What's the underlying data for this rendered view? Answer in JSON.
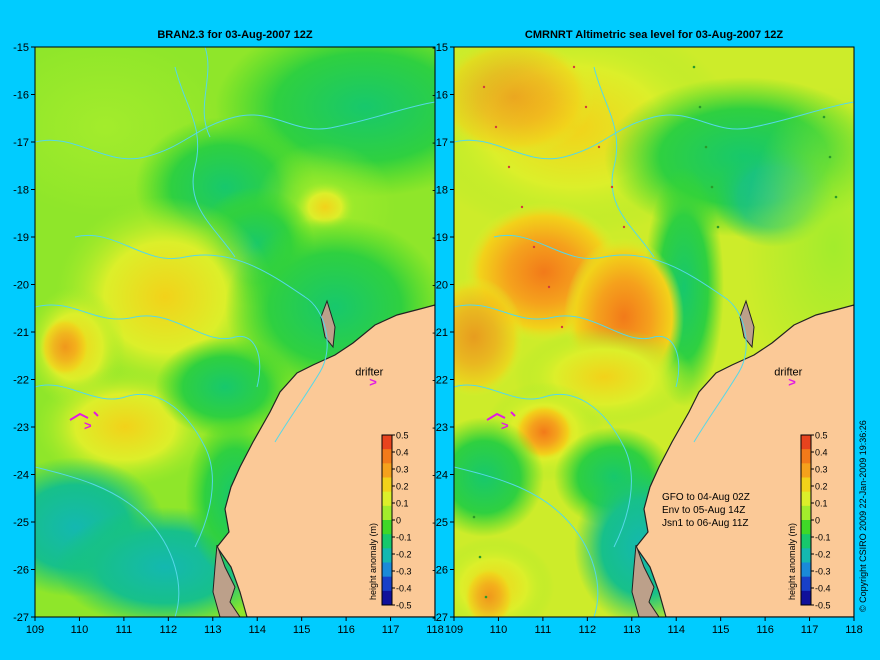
{
  "panels": [
    {
      "id": "left",
      "title": "BRAN2.3 for 03-Aug-2007 12Z",
      "drifter_label": "drifter",
      "drifter_lon": 116.7,
      "drifter_lat": -22.0,
      "notes": []
    },
    {
      "id": "right",
      "title": "CMRNRT Altimetric sea level  for 03-Aug-2007 12Z",
      "drifter_label": "drifter",
      "drifter_lon": 116.7,
      "drifter_lat": -22.0,
      "notes": [
        "GFO to 04-Aug 02Z",
        "Env to 05-Aug 14Z",
        "Jsn1 to 06-Aug 11Z"
      ]
    }
  ],
  "axes": {
    "lon_min": 109,
    "lon_max": 118,
    "lat_min": -27,
    "lat_max": -15,
    "x_ticks": [
      "109",
      "110",
      "111",
      "112",
      "113",
      "114",
      "115",
      "116",
      "117",
      "118"
    ],
    "y_ticks": [
      "-15",
      "-16",
      "-17",
      "-18",
      "-19",
      "-20",
      "-21",
      "-22",
      "-23",
      "-24",
      "-25",
      "-26",
      "-27"
    ]
  },
  "colorbar": {
    "label": "height anomaly (m)",
    "ticks": [
      "0.5",
      "0.4",
      "0.3",
      "0.2",
      "0.1",
      "0",
      "-0.1",
      "-0.2",
      "-0.3",
      "-0.4",
      "-0.5"
    ],
    "colors": [
      "#e8431e",
      "#f27a1a",
      "#f5a11c",
      "#f2d21a",
      "#dcef2a",
      "#a3ec2c",
      "#3fd828",
      "#17c86c",
      "#14b8b0",
      "#1a8ad8",
      "#1840c8",
      "#10109a"
    ]
  },
  "copyright": "© Copyright CSIRO 2009   22-Jan-2009 19:36:26"
}
